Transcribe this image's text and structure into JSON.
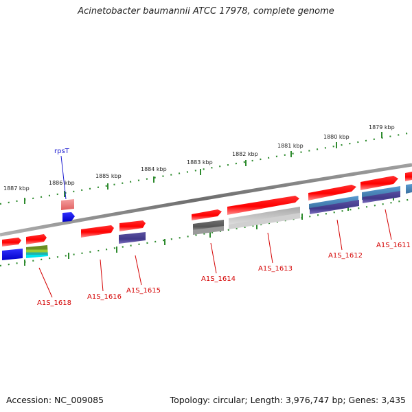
{
  "title": "Acinetobacter baumannii ATCC 17978, complete genome",
  "footer": {
    "accession": "Accession: NC_009085",
    "topology": "Topology: circular; Length: 3,976,747 bp; Genes: 3,435"
  },
  "kbp_labels": [
    "1887 kbp",
    "1886 kbp",
    "1885 kbp",
    "1884 kbp",
    "1883 kbp",
    "1882 kbp",
    "1881 kbp",
    "1880 kbp",
    "1879 kbp"
  ],
  "gene_labels": [
    "A1S_1618",
    "A1S_1616",
    "A1S_1615",
    "A1S_1614",
    "A1S_1613",
    "A1S_1612",
    "A1S_1611"
  ],
  "rna_label": "rpsT",
  "colors": {
    "backbone": "#808080",
    "gene": "#ff0000",
    "gene_pale": "#f08080",
    "tick": "#2e8b2e",
    "label_gene": "#d40000",
    "label_rna": "#1a1ad0",
    "cog_blue": "#0000ff",
    "cog_purple": "#483d8b",
    "cog_steel": "#4682b4",
    "cog_gray": "#808080",
    "cog_silver": "#c0c0c0",
    "cog_olive": "#6b8e23",
    "cog_cyan": "#00ced1"
  }
}
